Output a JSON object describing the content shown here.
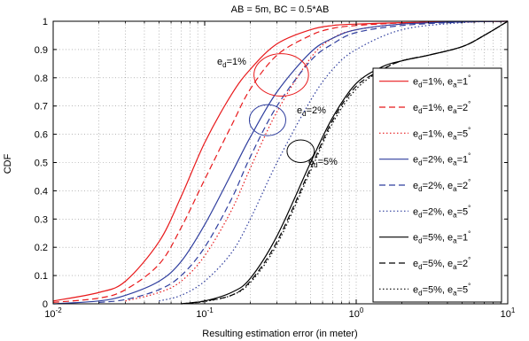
{
  "chart_data": {
    "type": "line",
    "title": "AB = 5m, BC = 0.5*AB",
    "xlabel": "Resulting estimation error (in meter)",
    "ylabel": "CDF",
    "xscale": "log",
    "xlim": [
      0.01,
      10
    ],
    "ylim": [
      0,
      1
    ],
    "grid": true,
    "legend_position": "right",
    "x_ticks": [
      {
        "value": 0.01,
        "base": "10",
        "exp": "-2"
      },
      {
        "value": 0.1,
        "base": "10",
        "exp": "-1"
      },
      {
        "value": 1,
        "base": "10",
        "exp": "0"
      },
      {
        "value": 10,
        "base": "10",
        "exp": "1"
      }
    ],
    "y_ticks": [
      "0",
      "0.1",
      "0.2",
      "0.3",
      "0.4",
      "0.5",
      "0.6",
      "0.7",
      "0.8",
      "0.9",
      "1"
    ],
    "series": [
      {
        "id": "s1",
        "d": "1%",
        "a": "1",
        "color": "#e8191b",
        "dash": "solid",
        "x": [
          0.01,
          0.02,
          0.03,
          0.05,
          0.07,
          0.1,
          0.15,
          0.2,
          0.3,
          0.5,
          0.7,
          1,
          2,
          5,
          10
        ],
        "y": [
          0.01,
          0.04,
          0.08,
          0.22,
          0.38,
          0.57,
          0.74,
          0.83,
          0.92,
          0.97,
          0.985,
          0.99,
          0.995,
          0.998,
          1
        ]
      },
      {
        "id": "s2",
        "d": "1%",
        "a": "2",
        "color": "#e8191b",
        "dash": "dashed",
        "x": [
          0.01,
          0.02,
          0.03,
          0.05,
          0.07,
          0.1,
          0.15,
          0.2,
          0.3,
          0.5,
          0.7,
          1,
          2,
          5,
          10
        ],
        "y": [
          0.005,
          0.02,
          0.05,
          0.14,
          0.27,
          0.44,
          0.63,
          0.76,
          0.88,
          0.95,
          0.975,
          0.985,
          0.994,
          0.998,
          1
        ]
      },
      {
        "id": "s3",
        "d": "1%",
        "a": "5",
        "color": "#e8191b",
        "dash": "dotted",
        "x": [
          0.03,
          0.05,
          0.07,
          0.1,
          0.15,
          0.2,
          0.3,
          0.5,
          0.7,
          1,
          2,
          5,
          10
        ],
        "y": [
          0.01,
          0.04,
          0.08,
          0.17,
          0.33,
          0.48,
          0.68,
          0.87,
          0.94,
          0.97,
          0.99,
          0.998,
          1
        ]
      },
      {
        "id": "s4",
        "d": "2%",
        "a": "1",
        "color": "#2f3e9e",
        "dash": "solid",
        "x": [
          0.01,
          0.02,
          0.03,
          0.05,
          0.07,
          0.1,
          0.15,
          0.2,
          0.3,
          0.5,
          0.7,
          1,
          2,
          5,
          10
        ],
        "y": [
          0,
          0.01,
          0.03,
          0.08,
          0.15,
          0.28,
          0.46,
          0.59,
          0.75,
          0.89,
          0.94,
          0.97,
          0.99,
          0.998,
          1
        ]
      },
      {
        "id": "s5",
        "d": "2%",
        "a": "2",
        "color": "#2f3e9e",
        "dash": "dashed",
        "x": [
          0.02,
          0.03,
          0.05,
          0.07,
          0.1,
          0.15,
          0.2,
          0.3,
          0.5,
          0.7,
          1,
          2,
          5,
          10
        ],
        "y": [
          0.005,
          0.015,
          0.05,
          0.1,
          0.2,
          0.37,
          0.52,
          0.7,
          0.86,
          0.92,
          0.96,
          0.985,
          0.997,
          1
        ]
      },
      {
        "id": "s6",
        "d": "2%",
        "a": "5",
        "color": "#2f3e9e",
        "dash": "dotted",
        "x": [
          0.05,
          0.07,
          0.1,
          0.15,
          0.2,
          0.3,
          0.5,
          0.7,
          1,
          2,
          5,
          10
        ],
        "y": [
          0.01,
          0.03,
          0.08,
          0.18,
          0.3,
          0.5,
          0.72,
          0.83,
          0.9,
          0.97,
          0.995,
          1
        ]
      },
      {
        "id": "s7",
        "d": "5%",
        "a": "1",
        "color": "#000000",
        "dash": "solid",
        "x": [
          0.07,
          0.1,
          0.15,
          0.2,
          0.3,
          0.5,
          0.7,
          1,
          1.5,
          2,
          3,
          5,
          7,
          10
        ],
        "y": [
          0,
          0.01,
          0.04,
          0.09,
          0.24,
          0.5,
          0.66,
          0.78,
          0.84,
          0.86,
          0.88,
          0.91,
          0.95,
          1
        ]
      },
      {
        "id": "s8",
        "d": "5%",
        "a": "2",
        "color": "#000000",
        "dash": "dashed",
        "x": [
          0.07,
          0.1,
          0.15,
          0.2,
          0.3,
          0.5,
          0.7,
          1,
          1.5,
          2,
          3,
          5,
          7,
          10
        ],
        "y": [
          0,
          0.01,
          0.03,
          0.08,
          0.22,
          0.48,
          0.65,
          0.77,
          0.83,
          0.86,
          0.88,
          0.91,
          0.95,
          1
        ]
      },
      {
        "id": "s9",
        "d": "5%",
        "a": "5",
        "color": "#000000",
        "dash": "dotted",
        "x": [
          0.07,
          0.1,
          0.15,
          0.2,
          0.3,
          0.5,
          0.7,
          1,
          1.5,
          2,
          3,
          5,
          7,
          10
        ],
        "y": [
          0,
          0.008,
          0.03,
          0.075,
          0.21,
          0.47,
          0.64,
          0.76,
          0.83,
          0.86,
          0.88,
          0.91,
          0.95,
          1
        ]
      }
    ],
    "annotations": [
      {
        "id": "ann1",
        "prefix": "e",
        "sub": "d",
        "suffix": "=1%",
        "color": "#e8191b"
      },
      {
        "id": "ann2",
        "prefix": "e",
        "sub": "d",
        "suffix": "=2%",
        "color": "#2f3e9e"
      },
      {
        "id": "ann3",
        "prefix": "e",
        "sub": "d",
        "suffix": "=5%",
        "color": "#000000"
      }
    ],
    "ellipses": [
      {
        "cx": 0.32,
        "cy": 0.81,
        "rx_dec": 0.18,
        "ry": 0.075,
        "color": "#e8191b"
      },
      {
        "cx": 0.26,
        "cy": 0.65,
        "rx_dec": 0.12,
        "ry": 0.055,
        "color": "#2f3e9e"
      },
      {
        "cx": 0.43,
        "cy": 0.54,
        "rx_dec": 0.09,
        "ry": 0.04,
        "color": "#000000"
      }
    ]
  }
}
